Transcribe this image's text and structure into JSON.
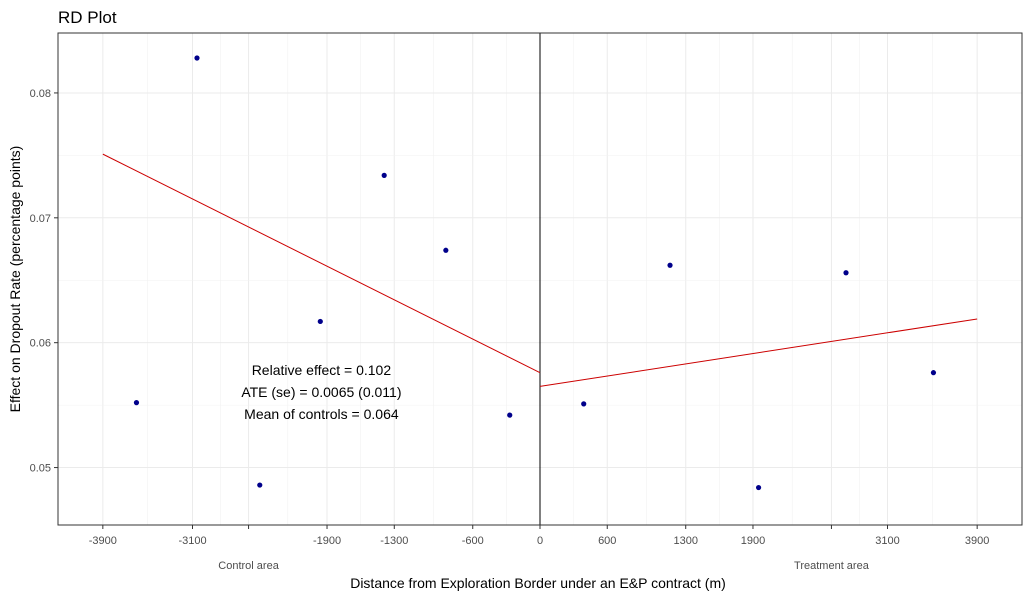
{
  "chart_data": {
    "type": "scatter",
    "title": "RD Plot",
    "xlabel": "Distance from Exploration Border under an E&P contract (m)",
    "ylabel": "Effect on Dropout Rate (percentage points)",
    "xlim": [
      -4300,
      4300
    ],
    "ylim": [
      0.0454,
      0.0848
    ],
    "x_ticks": [
      {
        "value": -3900,
        "label": "-3900"
      },
      {
        "value": -3100,
        "label": "-3100"
      },
      {
        "value": -1900,
        "label": "-1900"
      },
      {
        "value": -1300,
        "label": "-1300"
      },
      {
        "value": -600,
        "label": "-600"
      },
      {
        "value": 0,
        "label": "0"
      },
      {
        "value": 600,
        "label": "600"
      },
      {
        "value": 1300,
        "label": "1300"
      },
      {
        "value": 1900,
        "label": "1900"
      },
      {
        "value": 3100,
        "label": "3100"
      },
      {
        "value": 3900,
        "label": "3900"
      }
    ],
    "x_minor_ticks": [
      -2600,
      2600
    ],
    "y_ticks": [
      {
        "value": 0.05,
        "label": "0.05"
      },
      {
        "value": 0.06,
        "label": "0.06"
      },
      {
        "value": 0.07,
        "label": "0.07"
      },
      {
        "value": 0.08,
        "label": "0.08"
      }
    ],
    "points": [
      {
        "x": -3600,
        "y": 0.0552
      },
      {
        "x": -3060,
        "y": 0.0828
      },
      {
        "x": -2500,
        "y": 0.0486
      },
      {
        "x": -1960,
        "y": 0.0617
      },
      {
        "x": -1390,
        "y": 0.0734
      },
      {
        "x": -840,
        "y": 0.0674
      },
      {
        "x": -270,
        "y": 0.0542
      },
      {
        "x": 390,
        "y": 0.0551
      },
      {
        "x": 1160,
        "y": 0.0662
      },
      {
        "x": 1950,
        "y": 0.0484
      },
      {
        "x": 2730,
        "y": 0.0656
      },
      {
        "x": 3510,
        "y": 0.0576
      }
    ],
    "fit_lines": [
      {
        "x": [
          -3900,
          0
        ],
        "y": [
          0.0751,
          0.0576
        ]
      },
      {
        "x": [
          0,
          3900
        ],
        "y": [
          0.0565,
          0.0619
        ]
      }
    ],
    "cutoff": 0,
    "area_labels": [
      {
        "x": -2600,
        "label": "Control area"
      },
      {
        "x": 2600,
        "label": "Treatment area"
      }
    ],
    "annotation": {
      "x": -1950,
      "lines": [
        "Relative effect = 0.102",
        "ATE (se) = 0.0065 (0.011)",
        "Mean of controls = 0.064"
      ]
    },
    "point_color": "#00008b",
    "line_color": "#cc0000",
    "grid": true,
    "legend": "none"
  }
}
